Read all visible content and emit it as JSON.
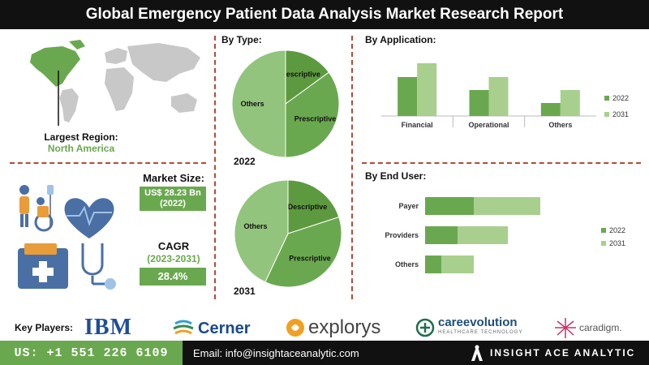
{
  "title": "Global Emergency Patient Data Analysis Market Research Report",
  "region": {
    "label": "Largest Region:",
    "value": "North America"
  },
  "market_size": {
    "label": "Market Size:",
    "value": "US$ 28.23 Bn",
    "year": "(2022)"
  },
  "cagr": {
    "label": "CAGR",
    "period": "(2023-2031)",
    "value": "28.4%"
  },
  "by_type": {
    "title": "By Type:"
  },
  "by_application": {
    "title": "By Application:"
  },
  "by_end_user": {
    "title": "By End User:"
  },
  "colors": {
    "dark_green": "#6aa84f",
    "light_green": "#a8cf8e",
    "mid_green": "#93c47d",
    "dark_pie": "#5d9a3f"
  },
  "chart_data": [
    {
      "type": "pie",
      "label": "2022",
      "slices": [
        {
          "name": "Descriptive",
          "value": 15
        },
        {
          "name": "Prescriptive",
          "value": 35
        },
        {
          "name": "Others",
          "value": 50
        }
      ]
    },
    {
      "type": "pie",
      "label": "2031",
      "slices": [
        {
          "name": "Descriptive",
          "value": 20
        },
        {
          "name": "Prescriptive",
          "value": 37
        },
        {
          "name": "Others",
          "value": 43
        }
      ]
    },
    {
      "type": "bar",
      "title": "By Application:",
      "categories": [
        "Financial",
        "Operational",
        "Others"
      ],
      "series": [
        {
          "name": "2022",
          "values": [
            48,
            32,
            16
          ]
        },
        {
          "name": "2031",
          "values": [
            65,
            48,
            32
          ]
        }
      ],
      "ylim": [
        0,
        70
      ],
      "legend": "right"
    },
    {
      "type": "bar",
      "orientation": "horizontal",
      "stacked": true,
      "title": "By End User:",
      "categories": [
        "Payer",
        "Providers",
        "Others"
      ],
      "series": [
        {
          "name": "2022",
          "values": [
            30,
            20,
            10
          ]
        },
        {
          "name": "2031",
          "values": [
            41,
            31,
            20
          ]
        }
      ],
      "legend": "right"
    }
  ],
  "key_players": {
    "label": "Key Players:",
    "logos": [
      "IBM",
      "Cerner",
      "explorys",
      "careevolution",
      "HEALTHCARE TECHNOLOGY",
      "caradigm."
    ]
  },
  "footer": {
    "phone": "US: +1 551 226 6109",
    "email": "Email: info@insightaceanalytic.com",
    "brand": "INSIGHT ACE ANALYTIC"
  }
}
